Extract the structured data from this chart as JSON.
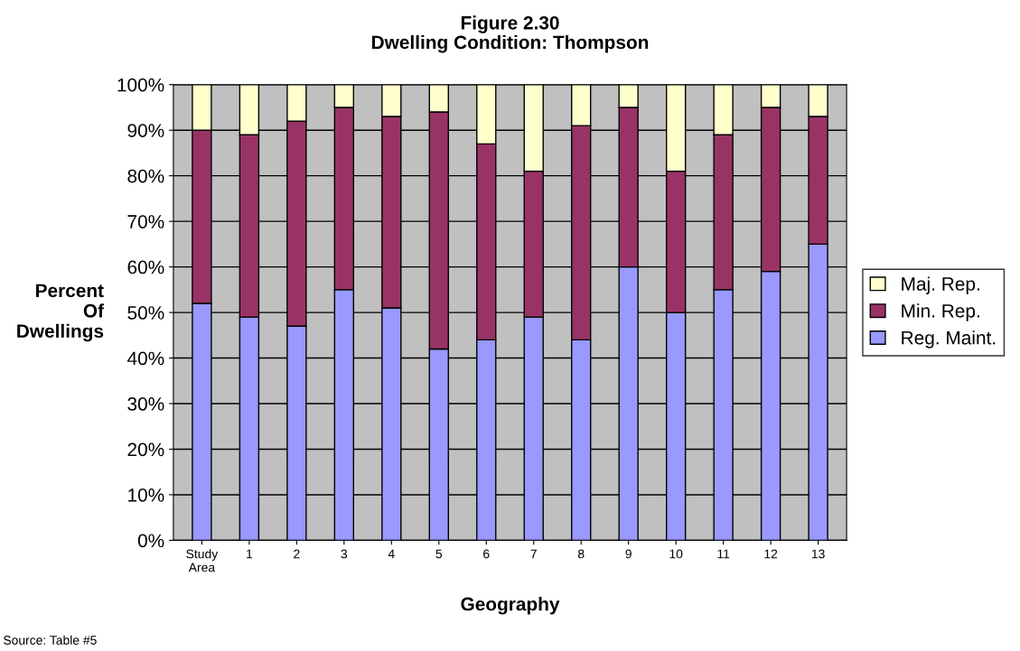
{
  "chart_data": {
    "type": "bar",
    "title": "Figure 2.30",
    "subtitle": "Dwelling Condition: Thompson",
    "xlabel": "Geography",
    "ylabel": "Percent\nOf\nDwellings",
    "categories": [
      "Study\nArea",
      "1",
      "2",
      "3",
      "4",
      "5",
      "6",
      "7",
      "8",
      "9",
      "10",
      "11",
      "12",
      "13"
    ],
    "stacked": true,
    "series": [
      {
        "name": "Reg. Maint.",
        "color": "#9999ff",
        "values": [
          52,
          49,
          47,
          55,
          51,
          42,
          44,
          49,
          44,
          60,
          50,
          55,
          59,
          65
        ]
      },
      {
        "name": "Min. Rep.",
        "color": "#993366",
        "values": [
          38,
          40,
          45,
          40,
          42,
          52,
          43,
          32,
          47,
          35,
          31,
          34,
          36,
          28
        ]
      },
      {
        "name": "Maj. Rep.",
        "color": "#ffffcc",
        "values": [
          10,
          11,
          8,
          5,
          7,
          6,
          13,
          19,
          9,
          5,
          19,
          11,
          5,
          7
        ]
      }
    ],
    "ylim": [
      0,
      100
    ],
    "yticks": [
      {
        "value": 0,
        "label": "0%"
      },
      {
        "value": 10,
        "label": "10%"
      },
      {
        "value": 20,
        "label": "20%"
      },
      {
        "value": 30,
        "label": "30%"
      },
      {
        "value": 40,
        "label": "40%"
      },
      {
        "value": 50,
        "label": "50%"
      },
      {
        "value": 60,
        "label": "60%"
      },
      {
        "value": 70,
        "label": "70%"
      },
      {
        "value": 80,
        "label": "80%"
      },
      {
        "value": 90,
        "label": "90%"
      },
      {
        "value": 100,
        "label": "100%"
      }
    ],
    "grid": "y",
    "legend": "right",
    "annotations": [
      "Source: Table #5"
    ]
  }
}
